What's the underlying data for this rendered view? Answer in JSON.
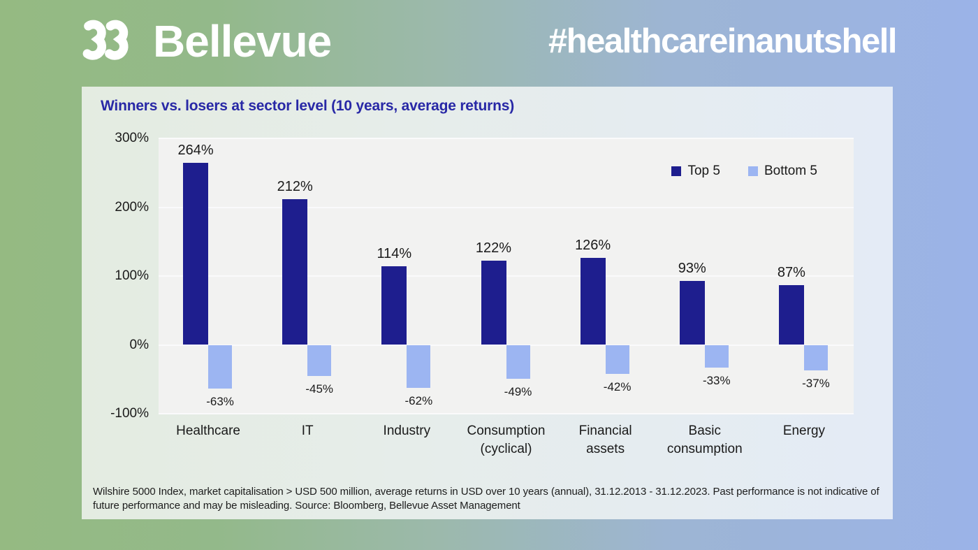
{
  "header": {
    "brand": "Bellevue",
    "hashtag": "#healthcareinanutshell"
  },
  "chart": {
    "title": "Winners vs. losers at sector level (10 years, average returns)",
    "footnote": "Wilshire 5000 Index, market capitalisation > USD 500 million, average returns in USD over 10 years (annual), 31.12.2013 - 31.12.2023. Past performance is not indicative of future performance and may be misleading. Source: Bloomberg, Bellevue Asset Management"
  },
  "chart_data": {
    "type": "bar",
    "title": "Winners vs. losers at sector level (10 years, average returns)",
    "categories": [
      "Healthcare",
      "IT",
      "Industry",
      "Consumption (cyclical)",
      "Financial assets",
      "Basic consumption",
      "Energy"
    ],
    "series": [
      {
        "name": "Top 5",
        "color": "#1E1E8E",
        "values": [
          264,
          212,
          114,
          122,
          126,
          93,
          87
        ]
      },
      {
        "name": "Bottom 5",
        "color": "#9CB5F2",
        "values": [
          -63,
          -45,
          -62,
          -49,
          -42,
          -33,
          -37
        ]
      }
    ],
    "xlabel": "",
    "ylabel": "",
    "ylim": [
      -100,
      300
    ],
    "ytick_values": [
      300,
      200,
      100,
      0,
      -100
    ],
    "ytick_suffix": "%",
    "grid": true,
    "legend_position": "top-right",
    "plot_background": "#F2F2F1",
    "gridline_color": "#FAFAFB"
  },
  "colors": {
    "page_gradient_left": "#95BA82",
    "page_gradient_right": "#9BB3E8",
    "card_gradient_left": "#E4ECE1",
    "card_gradient_right": "#E4EBF6",
    "title_blue": "#2828A6",
    "top5_navy": "#1E1E8E",
    "bottom5_light_blue": "#9CB5F2",
    "text": "#1A1A1A",
    "white": "#FFFFFF"
  }
}
